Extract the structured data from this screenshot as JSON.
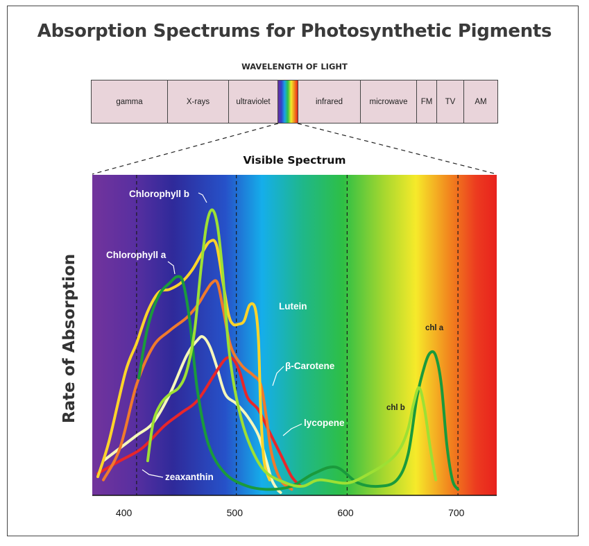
{
  "title": "Absorption Spectrums for Photosynthetic Pigments",
  "wavelength_title": "WAVELENGTH OF LIGHT",
  "bands": [
    "gamma",
    "X-rays",
    "ultraviolet",
    "",
    "infrared",
    "microwave",
    "FM",
    "TV",
    "AM"
  ],
  "chart_data": {
    "type": "line",
    "title": "Visible Spectrum",
    "xlabel": "",
    "ylabel": "Rate of Absorption",
    "xlim": [
      370,
      735
    ],
    "ylim": [
      0,
      100
    ],
    "xticks": [
      400,
      500,
      600,
      700
    ],
    "gridlines_x": [
      410,
      500,
      600,
      700
    ],
    "series": [
      {
        "name": "Chlorophyll a",
        "color": "#1a9a3c",
        "x": [
          412,
          420,
          430,
          440,
          447,
          452,
          458,
          465,
          475,
          490,
          510,
          530,
          550,
          570,
          590,
          610,
          630,
          645,
          655,
          663,
          670,
          675,
          680,
          685,
          690,
          695,
          700
        ],
        "y": [
          36,
          52,
          62,
          66,
          68,
          66,
          54,
          32,
          15,
          6,
          2,
          1,
          2,
          6,
          8,
          3,
          2,
          4,
          12,
          30,
          40,
          44,
          43,
          34,
          15,
          4,
          1
        ]
      },
      {
        "name": "Chlorophyll b",
        "color": "#9de034",
        "x": [
          420,
          425,
          432,
          440,
          448,
          455,
          462,
          468,
          473,
          478,
          483,
          488,
          493,
          500,
          510,
          525,
          545,
          560,
          575,
          600,
          620,
          638,
          648,
          655,
          660,
          665,
          670,
          675,
          680
        ],
        "y": [
          10,
          22,
          28,
          31,
          33,
          38,
          50,
          70,
          84,
          89,
          84,
          68,
          46,
          30,
          17,
          7,
          3,
          2,
          4,
          3,
          6,
          10,
          14,
          20,
          28,
          33,
          26,
          14,
          4
        ]
      },
      {
        "name": "Lutein",
        "color": "#ffd42a",
        "x": [
          375,
          385,
          400,
          410,
          420,
          430,
          440,
          450,
          460,
          470,
          476,
          482,
          488,
          493,
          497,
          502,
          507,
          512,
          517,
          520,
          522,
          525,
          530
        ],
        "y": [
          5,
          16,
          38,
          47,
          57,
          63,
          64,
          66,
          70,
          76,
          79,
          78,
          66,
          56,
          53,
          53,
          54,
          59,
          58,
          48,
          26,
          10,
          4
        ]
      },
      {
        "name": "β-Carotene",
        "color": "#f07a2c",
        "x": [
          380,
          395,
          410,
          425,
          440,
          455,
          465,
          472,
          478,
          483,
          488,
          495,
          505,
          515,
          522,
          527,
          532,
          540,
          550
        ],
        "y": [
          4,
          14,
          34,
          46,
          51,
          55,
          59,
          63,
          66,
          66,
          58,
          46,
          40,
          37,
          34,
          24,
          12,
          4,
          1
        ]
      },
      {
        "name": "lycopene",
        "color": "#e8262a",
        "x": [
          375,
          395,
          415,
          435,
          450,
          465,
          480,
          490,
          497,
          503,
          510,
          520,
          530,
          540,
          550,
          558
        ],
        "y": [
          6,
          10,
          14,
          21,
          25,
          29,
          37,
          42,
          42,
          38,
          30,
          26,
          19,
          12,
          5,
          2
        ]
      },
      {
        "name": "zeaxanthin",
        "color": "#f6f7bb",
        "x": [
          380,
          395,
          410,
          425,
          440,
          455,
          465,
          470,
          476,
          482,
          490,
          500,
          510,
          520,
          527,
          532,
          537,
          540
        ],
        "y": [
          10,
          14,
          18,
          22,
          31,
          43,
          48,
          49,
          46,
          40,
          31,
          28,
          24,
          18,
          10,
          4,
          1,
          0
        ]
      }
    ]
  },
  "labels": {
    "chl_b": "Chlorophyll b",
    "chl_a": "Chlorophyll a",
    "lutein": "Lutein",
    "carotene": "β-Carotene",
    "lycopene": "lycopene",
    "zeaxanthin": "zeaxanthin",
    "chl_a_peak": "chl a",
    "chl_b_peak": "chl b"
  },
  "colors": {
    "violet": "#6a2fa0",
    "blue": "#2a3fc4",
    "cyan": "#15aeea",
    "green": "#29bf46",
    "yellow": "#f6ea2a",
    "orange": "#f2891e",
    "red": "#e92820"
  }
}
